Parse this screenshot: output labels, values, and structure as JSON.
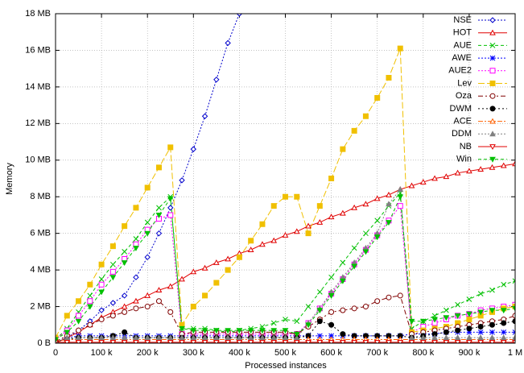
{
  "chart_data": {
    "type": "line",
    "xlabel": "Processed instances",
    "ylabel": "Memory",
    "x": [
      0,
      25000,
      50000,
      75000,
      100000,
      125000,
      150000,
      175000,
      200000,
      225000,
      250000,
      275000,
      300000,
      325000,
      350000,
      375000,
      400000,
      425000,
      450000,
      475000,
      500000,
      525000,
      550000,
      575000,
      600000,
      625000,
      650000,
      675000,
      700000,
      725000,
      750000,
      775000,
      800000,
      825000,
      850000,
      875000,
      900000,
      925000,
      950000,
      975000,
      1000000
    ],
    "xlim": [
      0,
      1000000
    ],
    "xticks": [
      0,
      {
        "value": 100000,
        "label": "100 k"
      },
      {
        "value": 200000,
        "label": "200 k"
      },
      {
        "value": 300000,
        "label": "300 k"
      },
      {
        "value": 400000,
        "label": "400 k"
      },
      {
        "value": 500000,
        "label": "500 k"
      },
      {
        "value": 600000,
        "label": "600 k"
      },
      {
        "value": 700000,
        "label": "700 k"
      },
      {
        "value": 800000,
        "label": "800 k"
      },
      {
        "value": 900000,
        "label": "900 k"
      },
      {
        "value": 1000000,
        "label": "1 M"
      }
    ],
    "ylim": [
      0,
      18
    ],
    "yticks": [
      {
        "value": 0,
        "label": "0 B"
      },
      {
        "value": 2,
        "label": "2 MB"
      },
      {
        "value": 4,
        "label": "4 MB"
      },
      {
        "value": 6,
        "label": "6 MB"
      },
      {
        "value": 8,
        "label": "8 MB"
      },
      {
        "value": 10,
        "label": "10 MB"
      },
      {
        "value": 12,
        "label": "12 MB"
      },
      {
        "value": 14,
        "label": "14 MB"
      },
      {
        "value": 16,
        "label": "16 MB"
      },
      {
        "value": 18,
        "label": "18 MB"
      }
    ],
    "grid": true,
    "legend": "top-right",
    "series": [
      {
        "name": "NSE",
        "color": "#0000cc",
        "values": [
          0.1,
          0.3,
          0.7,
          1.2,
          1.8,
          2.2,
          2.6,
          3.6,
          4.7,
          6.0,
          7.4,
          8.9,
          10.6,
          12.4,
          14.4,
          16.4,
          18,
          null,
          null,
          null,
          null,
          null,
          null,
          null,
          null,
          null,
          null,
          null,
          null,
          null,
          null,
          null,
          null,
          null,
          null,
          null,
          null,
          null,
          null,
          null,
          null
        ]
      },
      {
        "name": "HOT",
        "color": "#e00000",
        "values": [
          0,
          0.3,
          0.6,
          1.0,
          1.4,
          1.7,
          2.0,
          2.3,
          2.6,
          2.9,
          3.1,
          3.5,
          3.9,
          4.1,
          4.4,
          4.6,
          4.9,
          5.1,
          5.4,
          5.6,
          5.9,
          6.1,
          6.4,
          6.6,
          6.9,
          7.1,
          7.4,
          7.6,
          7.9,
          8.1,
          8.4,
          8.6,
          8.8,
          9.0,
          9.1,
          9.3,
          9.4,
          9.5,
          9.6,
          9.7,
          9.8
        ]
      },
      {
        "name": "AUE",
        "color": "#00c000",
        "values": [
          0.2,
          0.8,
          1.7,
          2.6,
          3.5,
          4.3,
          5.0,
          5.7,
          6.6,
          7.4,
          8.0,
          0.8,
          0.8,
          0.8,
          0.7,
          0.6,
          0.7,
          0.8,
          0.9,
          1.1,
          1.3,
          1.2,
          2.0,
          2.8,
          3.6,
          4.4,
          5.2,
          6.0,
          6.7,
          7.5,
          8.2,
          0.8,
          1.2,
          1.5,
          1.8,
          2.1,
          2.4,
          2.7,
          2.9,
          3.2,
          3.4
        ]
      },
      {
        "name": "AWE",
        "color": "#0000ff",
        "values": [
          0.1,
          0.3,
          0.4,
          0.4,
          0.4,
          0.4,
          0.4,
          0.4,
          0.4,
          0.4,
          0.4,
          0.4,
          0.4,
          0.4,
          0.4,
          0.4,
          0.4,
          0.4,
          0.4,
          0.4,
          0.4,
          0.4,
          0.4,
          0.4,
          0.4,
          0.4,
          0.4,
          0.4,
          0.4,
          0.4,
          0.4,
          0.5,
          0.5,
          0.5,
          0.6,
          0.6,
          0.6,
          0.6,
          0.6,
          0.6,
          0.6
        ]
      },
      {
        "name": "AUE2",
        "color": "#ff00ff",
        "values": [
          0.2,
          0.7,
          1.5,
          2.3,
          3.2,
          3.9,
          4.6,
          5.4,
          6.2,
          6.8,
          7.0,
          0.5,
          0.5,
          0.5,
          0.5,
          0.5,
          0.5,
          0.5,
          0.5,
          0.5,
          0.5,
          0.5,
          1.1,
          1.9,
          2.7,
          3.5,
          4.3,
          5.1,
          5.9,
          6.7,
          7.5,
          0.6,
          0.9,
          1.1,
          1.3,
          1.5,
          1.6,
          1.8,
          1.9,
          2.0,
          2.1
        ]
      },
      {
        "name": "Lev",
        "color": "#f0c000",
        "values": [
          0.3,
          1.5,
          2.3,
          3.2,
          4.3,
          5.3,
          6.4,
          7.4,
          8.5,
          9.6,
          10.7,
          1.0,
          2.0,
          2.6,
          3.3,
          4.0,
          4.7,
          5.6,
          6.5,
          7.5,
          8.0,
          8.0,
          6.0,
          7.5,
          9.0,
          10.6,
          11.6,
          12.4,
          13.4,
          14.5,
          16.1,
          0.6,
          0.7,
          0.8,
          0.9,
          1.1,
          1.3,
          1.5,
          1.7,
          1.9,
          2.0
        ]
      },
      {
        "name": "Oza",
        "color": "#800000",
        "values": [
          0.1,
          0.4,
          0.7,
          1.0,
          1.3,
          1.5,
          1.7,
          1.9,
          2.0,
          2.3,
          1.7,
          0.5,
          0.6,
          0.6,
          0.6,
          0.6,
          0.6,
          0.6,
          0.6,
          0.6,
          0.6,
          0.5,
          0.9,
          1.3,
          1.7,
          1.8,
          1.9,
          2.0,
          2.3,
          2.5,
          2.6,
          0.5,
          0.6,
          0.7,
          0.8,
          0.9,
          1.0,
          1.1,
          1.2,
          1.3,
          1.5
        ]
      },
      {
        "name": "DWM",
        "color": "#000000",
        "values": [
          0.1,
          0.2,
          0.3,
          0.3,
          0.3,
          0.4,
          0.6,
          0.3,
          0.3,
          0.3,
          0.3,
          0.3,
          0.3,
          0.3,
          0.3,
          0.3,
          0.3,
          0.3,
          0.3,
          0.3,
          0.3,
          0.3,
          0.4,
          1.2,
          1.0,
          0.5,
          0.4,
          0.4,
          0.4,
          0.4,
          0.4,
          0.3,
          0.4,
          0.5,
          0.6,
          0.7,
          0.8,
          0.9,
          1.0,
          1.1,
          1.2
        ]
      },
      {
        "name": "ACE",
        "color": "#ff6000",
        "values": [
          0.1,
          0.2,
          0.2,
          0.2,
          0.2,
          0.2,
          0.2,
          0.2,
          0.2,
          0.2,
          0.2,
          0.2,
          0.2,
          0.2,
          0.2,
          0.2,
          0.2,
          0.2,
          0.2,
          0.2,
          0.2,
          0.2,
          0.2,
          0.2,
          0.2,
          0.2,
          0.2,
          0.2,
          0.2,
          0.2,
          0.2,
          0.2,
          0.2,
          0.2,
          0.2,
          0.2,
          0.2,
          0.2,
          0.2,
          0.2,
          0.2
        ]
      },
      {
        "name": "DDM",
        "color": "#808080",
        "values": [
          0.1,
          0.3,
          0.3,
          0.3,
          0.3,
          0.3,
          0.3,
          0.3,
          0.3,
          0.3,
          0.3,
          0.3,
          0.3,
          0.3,
          0.3,
          0.3,
          0.3,
          0.3,
          0.3,
          0.3,
          0.3,
          0.3,
          1.1,
          1.9,
          2.8,
          3.6,
          4.4,
          5.2,
          6.0,
          7.6,
          8.4,
          0.3,
          0.3,
          0.3,
          0.3,
          0.3,
          0.3,
          0.3,
          0.3,
          0.3,
          0.3
        ]
      },
      {
        "name": "NB",
        "color": "#e00000",
        "values": [
          0.05,
          0.05,
          0.05,
          0.05,
          0.05,
          0.05,
          0.05,
          0.05,
          0.05,
          0.05,
          0.05,
          0.05,
          0.05,
          0.05,
          0.05,
          0.05,
          0.05,
          0.05,
          0.05,
          0.05,
          0.05,
          0.05,
          0.05,
          0.05,
          0.05,
          0.05,
          0.05,
          0.05,
          0.05,
          0.05,
          0.05,
          0.05,
          0.05,
          0.05,
          0.05,
          0.05,
          0.05,
          0.05,
          0.05,
          0.05,
          0.05
        ]
      },
      {
        "name": "Win",
        "color": "#00c000",
        "values": [
          0.2,
          0.6,
          1.2,
          2.0,
          2.8,
          3.6,
          4.4,
          5.2,
          6.0,
          7.0,
          7.9,
          0.8,
          0.7,
          0.7,
          0.7,
          0.7,
          0.7,
          0.7,
          0.7,
          0.7,
          0.7,
          0.5,
          1.0,
          1.8,
          2.6,
          3.4,
          4.2,
          5.0,
          5.8,
          6.6,
          8.0,
          1.2,
          1.2,
          1.3,
          1.4,
          1.5,
          1.6,
          1.7,
          1.8,
          1.8,
          1.9
        ]
      }
    ]
  }
}
